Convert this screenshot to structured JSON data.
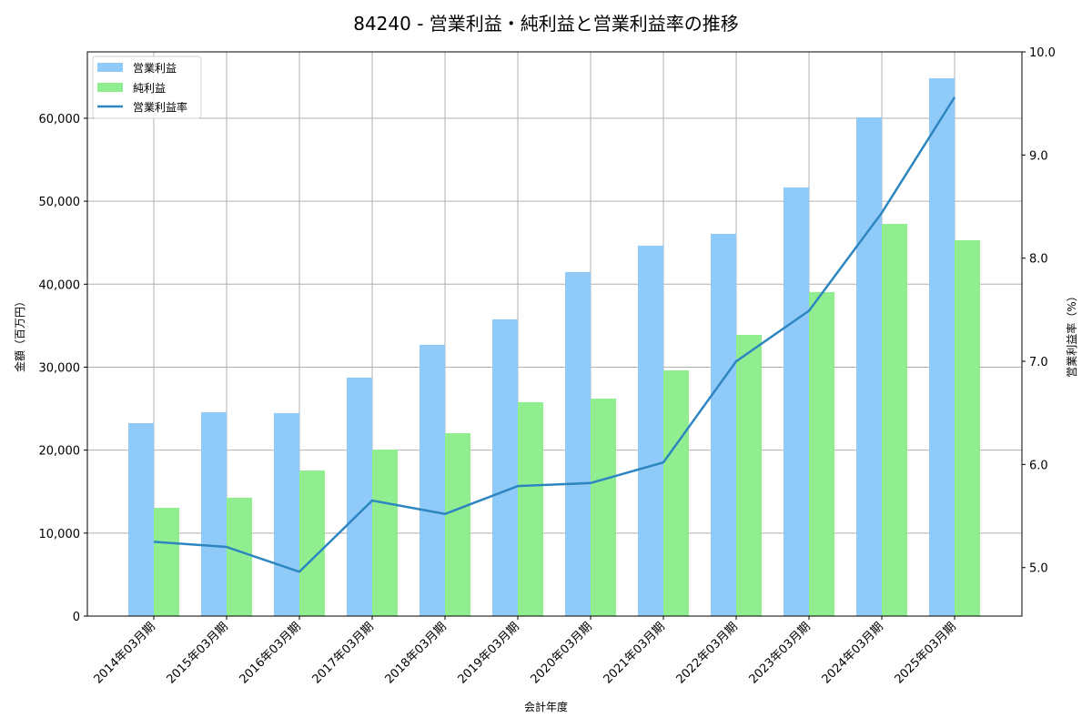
{
  "chart_data": {
    "type": "bar",
    "title": "84240 - 営業利益・純利益と営業利益率の推移",
    "xlabel": "会計年度",
    "ylabel": "金額（百万円）",
    "y2label": "営業利益率（%）",
    "ylim": [
      0,
      68000
    ],
    "y2lim": [
      4.53,
      10.0
    ],
    "yticks": [
      0,
      10000,
      20000,
      30000,
      40000,
      50000,
      60000
    ],
    "ytick_labels": [
      "0",
      "10,000",
      "20,000",
      "30,000",
      "40,000",
      "50,000",
      "60,000"
    ],
    "y2ticks": [
      5.0,
      6.0,
      7.0,
      8.0,
      9.0,
      10.0
    ],
    "y2tick_labels": [
      "5.0",
      "6.0",
      "7.0",
      "8.0",
      "9.0",
      "10.0"
    ],
    "grid": true,
    "legend_position": "upper left",
    "categories": [
      "2014年03月期",
      "2015年03月期",
      "2016年03月期",
      "2017年03月期",
      "2018年03月期",
      "2019年03月期",
      "2020年03月期",
      "2021年03月期",
      "2022年03月期",
      "2023年03月期",
      "2024年03月期",
      "2025年03月期"
    ],
    "series": [
      {
        "name": "営業利益",
        "type": "bar",
        "axis": "left",
        "color": "#90caf9",
        "values": [
          23250,
          24570,
          24460,
          28740,
          32690,
          35760,
          41460,
          44640,
          46070,
          51660,
          60110,
          64820
        ]
      },
      {
        "name": "純利益",
        "type": "bar",
        "axis": "left",
        "color": "#90ee90",
        "values": [
          13050,
          14260,
          17550,
          20070,
          22050,
          25780,
          26210,
          29610,
          33890,
          39050,
          47270,
          45300
        ]
      },
      {
        "name": "営業利益率",
        "type": "line",
        "axis": "right",
        "color": "#2e86c1",
        "values": [
          5.25,
          5.2,
          4.96,
          5.65,
          5.52,
          5.79,
          5.82,
          6.02,
          7.0,
          7.49,
          8.44,
          9.56
        ]
      }
    ]
  }
}
